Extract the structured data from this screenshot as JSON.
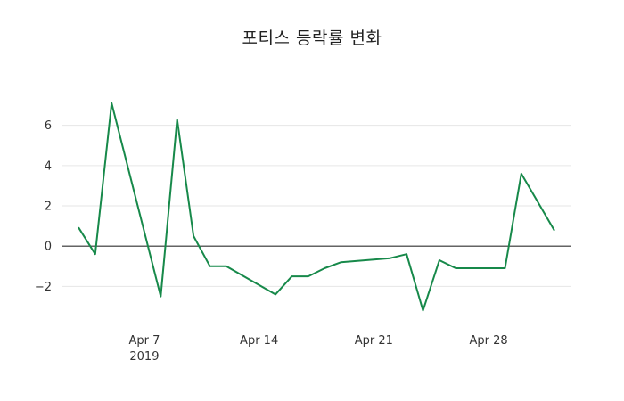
{
  "title": "포티스 등락률 변화",
  "colors": {
    "line": "#17894a",
    "grid": "#e6e6e6",
    "zero_line": "#333333",
    "tick_text": "#333333",
    "title_text": "#222222",
    "background": "#ffffff"
  },
  "chart_data": {
    "type": "line",
    "title": "포티스 등락률 변화",
    "xlabel": "",
    "ylabel": "",
    "series_name": "등락률",
    "x": [
      "2019-04-03",
      "2019-04-04",
      "2019-04-05",
      "2019-04-08",
      "2019-04-09",
      "2019-04-10",
      "2019-04-11",
      "2019-04-12",
      "2019-04-15",
      "2019-04-16",
      "2019-04-17",
      "2019-04-18",
      "2019-04-19",
      "2019-04-22",
      "2019-04-23",
      "2019-04-24",
      "2019-04-25",
      "2019-04-26",
      "2019-04-29",
      "2019-04-30",
      "2019-05-02"
    ],
    "values": [
      0.9,
      -0.4,
      7.1,
      -2.5,
      6.3,
      0.5,
      -1.0,
      -1.0,
      -2.4,
      -1.5,
      -1.5,
      -1.1,
      -0.8,
      -0.6,
      -0.4,
      -3.2,
      -0.7,
      -1.1,
      -1.1,
      3.6,
      0.8
    ],
    "xlim": [
      "2019-04-02",
      "2019-05-03"
    ],
    "ylim": [
      -3.8,
      7.8
    ],
    "yticks": [
      -2,
      0,
      2,
      4,
      6
    ],
    "xticks": [
      {
        "label": "Apr 7",
        "sublabel": "2019",
        "date": "2019-04-07"
      },
      {
        "label": "Apr 14",
        "sublabel": "",
        "date": "2019-04-14"
      },
      {
        "label": "Apr 21",
        "sublabel": "",
        "date": "2019-04-21"
      },
      {
        "label": "Apr 28",
        "sublabel": "",
        "date": "2019-04-28"
      }
    ],
    "grid": "horizontal",
    "legend": "none",
    "zero_line": true
  }
}
